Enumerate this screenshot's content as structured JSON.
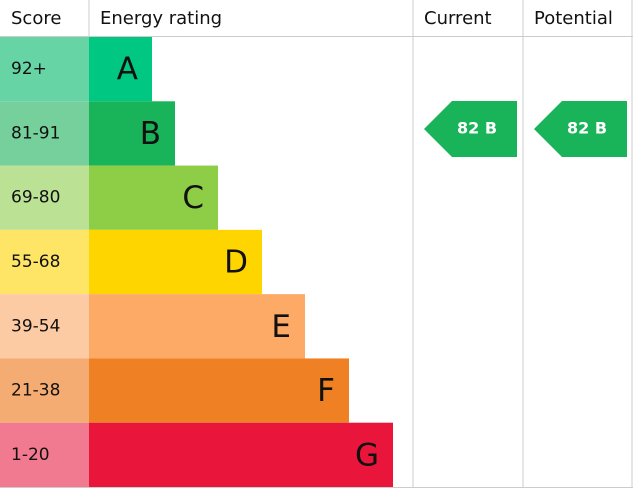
{
  "header": {
    "score": "Score",
    "rating": "Energy rating",
    "current": "Current",
    "potential": "Potential"
  },
  "bands": [
    {
      "score": "92+",
      "letter": "A"
    },
    {
      "score": "81-91",
      "letter": "B"
    },
    {
      "score": "69-80",
      "letter": "C"
    },
    {
      "score": "55-68",
      "letter": "D"
    },
    {
      "score": "39-54",
      "letter": "E"
    },
    {
      "score": "21-38",
      "letter": "F"
    },
    {
      "score": "1-20",
      "letter": "G"
    }
  ],
  "current": {
    "label": "82 B"
  },
  "potential": {
    "label": "82 B"
  }
}
